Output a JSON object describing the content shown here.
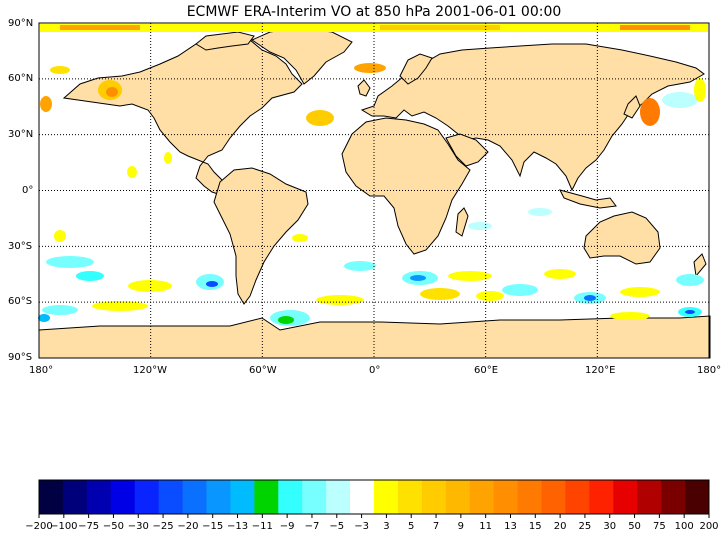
{
  "title": "ECMWF ERA-Interim VO at 850 hPa 2001-06-01 00:00",
  "lat_labels": [
    "90°N",
    "60°N",
    "30°N",
    "0°",
    "30°S",
    "60°S",
    "90°S"
  ],
  "lon_labels": [
    "180°",
    "120°W",
    "60°W",
    "0°",
    "60°E",
    "120°E",
    "180°"
  ],
  "colorbar": {
    "tick_labels": [
      "−200",
      "−100",
      "−75",
      "−50",
      "−30",
      "−25",
      "−20",
      "−15",
      "−13",
      "−11",
      "−9",
      "−7",
      "−5",
      "−3",
      "3",
      "5",
      "7",
      "9",
      "11",
      "13",
      "15",
      "20",
      "25",
      "30",
      "50",
      "75",
      "100",
      "200"
    ],
    "colors": [
      "#000042",
      "#00007a",
      "#0000b0",
      "#0000e6",
      "#0a24ff",
      "#0a4cff",
      "#0a70ff",
      "#0a96ff",
      "#00bcff",
      "#00d400",
      "#33ffff",
      "#77ffff",
      "#bbffff",
      "#ffffff",
      "#ffff00",
      "#ffe100",
      "#ffcc00",
      "#ffb800",
      "#ffa300",
      "#ff8f00",
      "#ff7a00",
      "#ff6200",
      "#ff4400",
      "#ff2200",
      "#e60000",
      "#b00000",
      "#7a0000",
      "#4a0000"
    ]
  },
  "colors": {
    "land": "#ffdfa5",
    "ocean": "#ffffff",
    "coast": "#000000"
  }
}
